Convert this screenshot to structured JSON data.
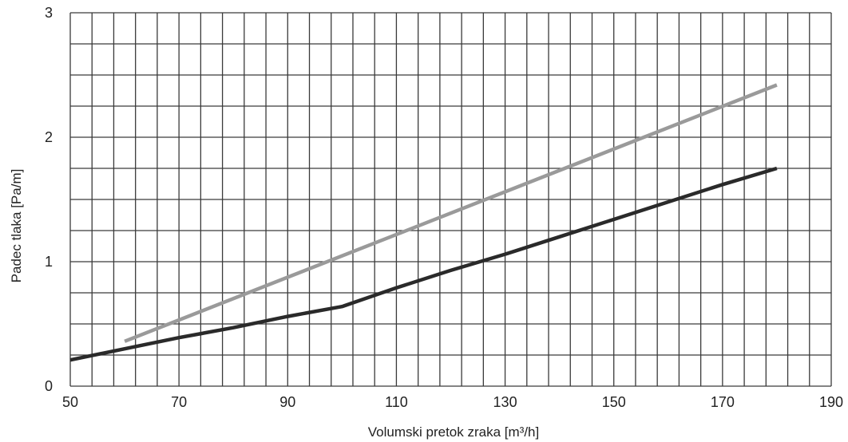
{
  "chart_data": {
    "type": "line",
    "xlabel": "Volumski pretok zraka [m³/h]",
    "ylabel": "Padec tlaka [Pa/m]",
    "xlim": [
      50,
      190
    ],
    "ylim": [
      0,
      3
    ],
    "x_ticks": [
      "50",
      "70",
      "90",
      "110",
      "130",
      "150",
      "170",
      "190"
    ],
    "y_ticks": [
      "0",
      "1",
      "2",
      "3"
    ],
    "grid": true,
    "grid_minor_x_step": 4,
    "grid_minor_y_step": 0.25,
    "series": [
      {
        "color": "#9a9a9a",
        "x": [
          60,
          180
        ],
        "y": [
          0.36,
          2.42
        ]
      },
      {
        "color": "#2a2a2a",
        "x": [
          50,
          60,
          70,
          80,
          90,
          100,
          110,
          120,
          130,
          140,
          150,
          160,
          170,
          180
        ],
        "y": [
          0.21,
          0.3,
          0.39,
          0.47,
          0.56,
          0.64,
          0.79,
          0.93,
          1.06,
          1.2,
          1.34,
          1.48,
          1.62,
          1.75
        ]
      }
    ]
  }
}
